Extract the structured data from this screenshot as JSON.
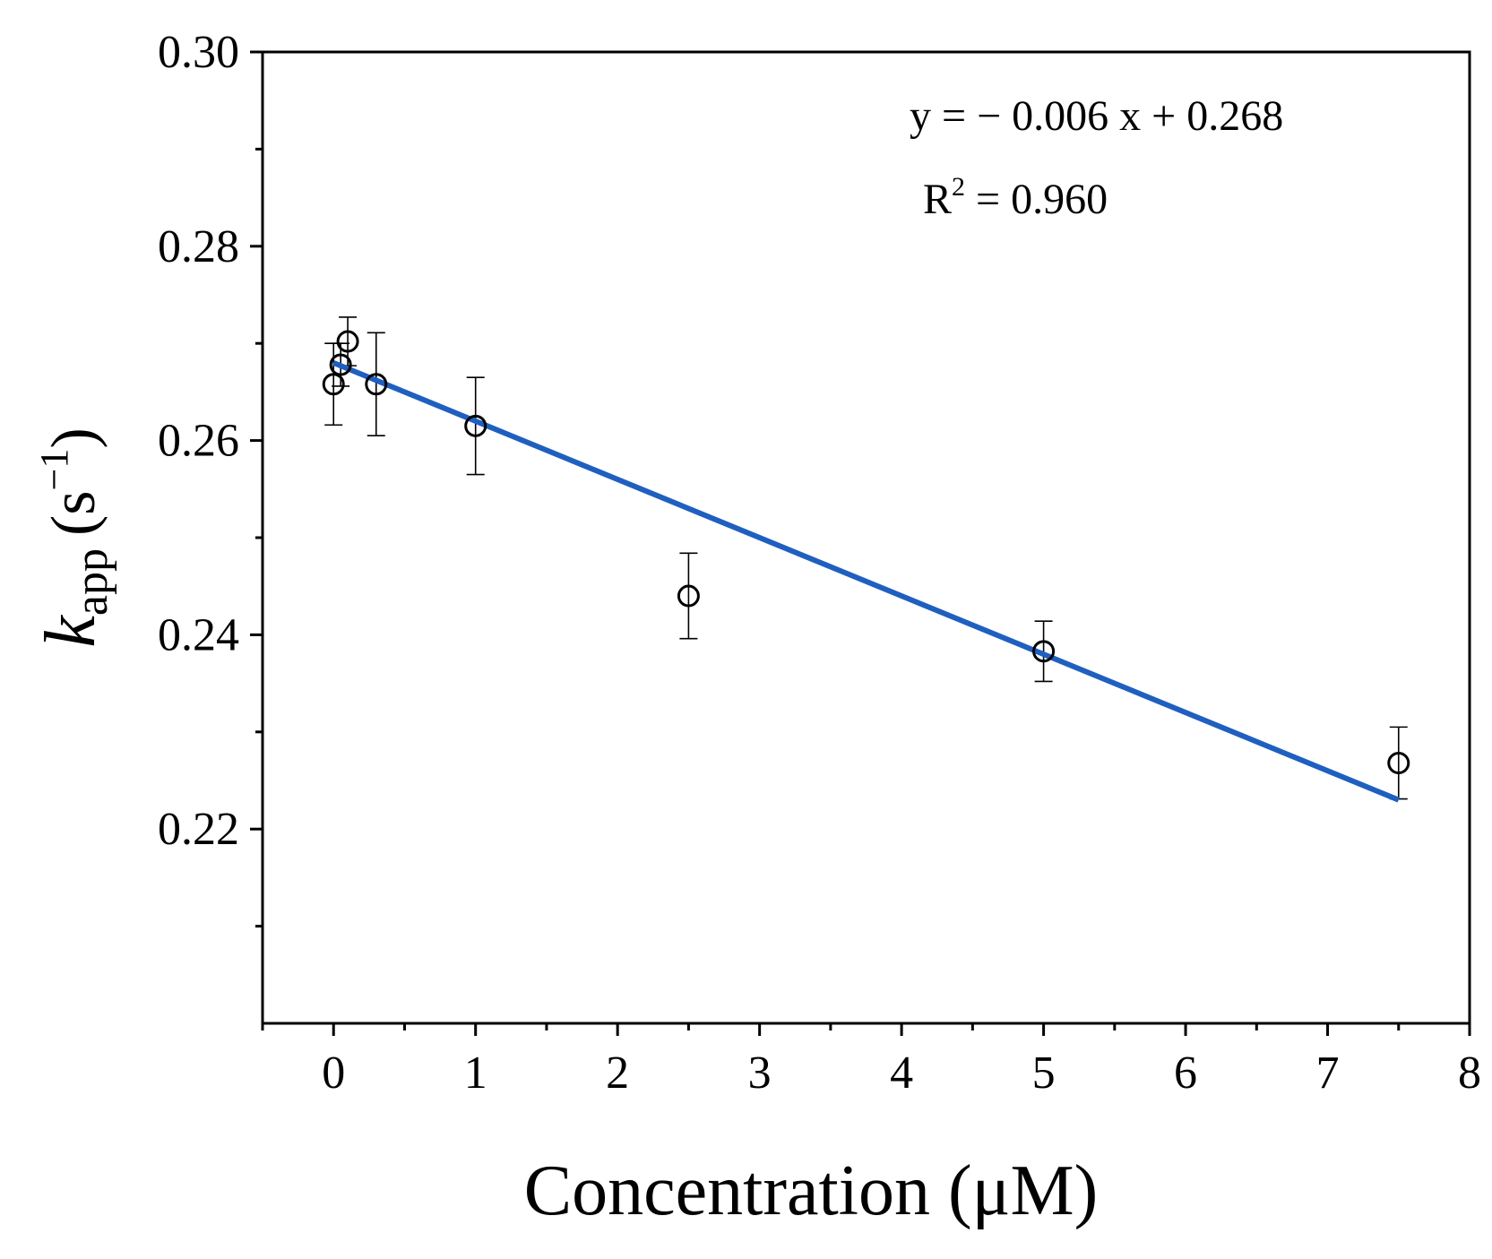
{
  "chart_data": {
    "type": "scatter",
    "xlabel": "Concentration (μM)",
    "ylabel": {
      "symbol": "k",
      "subscript": "app",
      "unit_open": "(s",
      "unit_exp": "−1",
      "unit_close": ")"
    },
    "xlim": [
      -0.5,
      8
    ],
    "ylim": [
      0.2,
      0.3
    ],
    "x_ticks": [
      0,
      1,
      2,
      3,
      4,
      5,
      6,
      7,
      8
    ],
    "x_tick_labels": [
      "0",
      "1",
      "2",
      "3",
      "4",
      "5",
      "6",
      "7",
      "8"
    ],
    "x_minor_ticks": [
      -0.5,
      0.5,
      1.5,
      2.5,
      3.5,
      4.5,
      5.5,
      6.5,
      7.5
    ],
    "y_ticks": [
      0.22,
      0.24,
      0.26,
      0.28,
      0.3
    ],
    "y_tick_labels": [
      "0.22",
      "0.24",
      "0.26",
      "0.28",
      "0.30"
    ],
    "y_minor_ticks": [
      0.21,
      0.23,
      0.25,
      0.27,
      0.29
    ],
    "grid": false,
    "series": [
      {
        "name": "k_app",
        "marker": "open-circle",
        "points": [
          {
            "x": 0.0,
            "y": 0.2658,
            "err": 0.0042
          },
          {
            "x": 0.05,
            "y": 0.2678,
            "err": 0.0022
          },
          {
            "x": 0.1,
            "y": 0.2702,
            "err": 0.0025
          },
          {
            "x": 0.3,
            "y": 0.2658,
            "err": 0.0053
          },
          {
            "x": 1.0,
            "y": 0.2615,
            "err": 0.005
          },
          {
            "x": 2.5,
            "y": 0.244,
            "err": 0.0044
          },
          {
            "x": 5.0,
            "y": 0.2383,
            "err": 0.0031
          },
          {
            "x": 7.5,
            "y": 0.2268,
            "err": 0.0037
          }
        ]
      }
    ],
    "fit": {
      "slope": -0.006,
      "intercept": 0.268,
      "x_range": [
        0,
        7.5
      ],
      "color": "#1f5fc0"
    },
    "annotations": {
      "equation": "y = − 0.006 x + 0.268",
      "r2_label": "R",
      "r2_exp": "2",
      "r2_value": " = 0.960"
    }
  }
}
